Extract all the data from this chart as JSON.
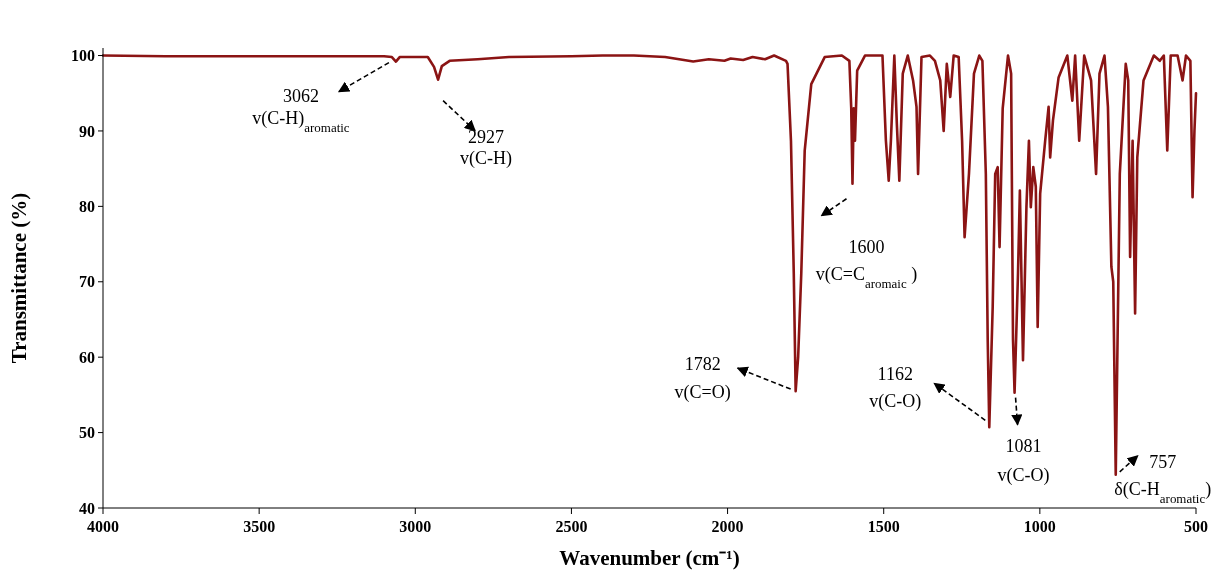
{
  "chart_data": {
    "type": "line",
    "xlabel": "Wavenumber (cm⁻¹)",
    "ylabel": "Transmittance (%)",
    "xlim": [
      4000,
      500
    ],
    "xticks": [
      4000,
      3500,
      3000,
      2500,
      2000,
      1500,
      1000,
      500
    ],
    "ylim": [
      40,
      101
    ],
    "yticks": [
      40,
      50,
      60,
      70,
      80,
      90,
      100
    ],
    "x": [
      4000,
      3800,
      3500,
      3100,
      3075,
      3062,
      3050,
      2960,
      2940,
      2927,
      2915,
      2890,
      2800,
      2700,
      2500,
      2400,
      2300,
      2200,
      2140,
      2110,
      2060,
      2010,
      1990,
      1950,
      1920,
      1880,
      1851,
      1813,
      1808,
      1797,
      1788,
      1782,
      1774,
      1764,
      1753,
      1732,
      1689,
      1634,
      1610,
      1604,
      1600,
      1596,
      1592,
      1585,
      1560,
      1504,
      1493,
      1484,
      1477,
      1466,
      1458,
      1450,
      1439,
      1423,
      1406,
      1395,
      1390,
      1379,
      1352,
      1336,
      1319,
      1308,
      1298,
      1287,
      1276,
      1260,
      1249,
      1241,
      1227,
      1211,
      1194,
      1184,
      1173,
      1167,
      1162,
      1151,
      1143,
      1135,
      1129,
      1119,
      1102,
      1092,
      1086,
      1081,
      1070,
      1064,
      1054,
      1043,
      1035,
      1029,
      1021,
      1013,
      1007,
      999,
      983,
      972,
      967,
      958,
      940,
      912,
      896,
      887,
      874,
      858,
      836,
      820,
      809,
      793,
      782,
      771,
      765,
      757,
      744,
      725,
      717,
      711,
      703,
      695,
      688,
      668,
      635,
      616,
      603,
      592,
      581,
      559,
      543,
      532,
      518,
      511,
      505,
      500
    ],
    "series": [
      {
        "color": "#8b1414",
        "values": [
          100,
          99.9,
          99.9,
          99.9,
          99.8,
          99.2,
          99.8,
          99.8,
          98.5,
          96.8,
          98.6,
          99.3,
          99.5,
          99.8,
          99.9,
          100,
          100,
          99.8,
          99.4,
          99.2,
          99.5,
          99.3,
          99.6,
          99.4,
          99.8,
          99.5,
          100,
          99.3,
          98.9,
          88.7,
          71.1,
          55.5,
          60,
          71.1,
          87.4,
          96.2,
          99.8,
          100,
          99.3,
          93,
          83,
          93,
          88.7,
          98,
          100,
          100,
          88.7,
          83.4,
          88.7,
          100,
          91,
          83.4,
          97.6,
          100,
          96.7,
          93.2,
          84.3,
          99.8,
          100,
          99.3,
          96.7,
          90,
          98.9,
          94.5,
          100,
          99.8,
          88.7,
          75.9,
          84.3,
          97.6,
          100,
          99.3,
          84.3,
          62.3,
          50.7,
          66.7,
          84.3,
          85.2,
          74.6,
          93,
          100,
          97.6,
          62.3,
          55.3,
          71.1,
          82.1,
          59.6,
          79.9,
          88.7,
          79.9,
          85.2,
          82.6,
          64,
          81.7,
          88.7,
          93.2,
          86.5,
          91.4,
          97.1,
          100,
          94,
          100,
          88.7,
          100,
          96.7,
          84.3,
          97.6,
          100,
          93.2,
          72,
          70,
          44.4,
          84.3,
          98.9,
          96.7,
          73.3,
          88.7,
          65.8,
          86.5,
          96.7,
          100,
          99.3,
          100,
          87.4,
          100,
          100,
          96.7,
          100,
          99.3,
          81.2,
          90,
          95
        ]
      }
    ],
    "line_style": "solid",
    "annotations": [
      {
        "text": "3062\nv(C-H)$_{aromatic}$",
        "x": 3062,
        "y": 99.2
      },
      {
        "text": "2927\nv(C-H)",
        "x": 2927,
        "y": 96.8
      },
      {
        "text": "1600\nv(C=C$_{aromaic}$ )",
        "x": 1600,
        "y": 83
      },
      {
        "text": "1782\nv(C=O)",
        "x": 1782,
        "y": 55.5
      },
      {
        "text": "1162\nv(C-O)",
        "x": 1162,
        "y": 50.7
      },
      {
        "text": "1081\nv(C-O)",
        "x": 1081,
        "y": 55.3
      },
      {
        "text": "757\nδ(C-H$_{aromatic}$)",
        "x": 757,
        "y": 44.4
      }
    ]
  }
}
